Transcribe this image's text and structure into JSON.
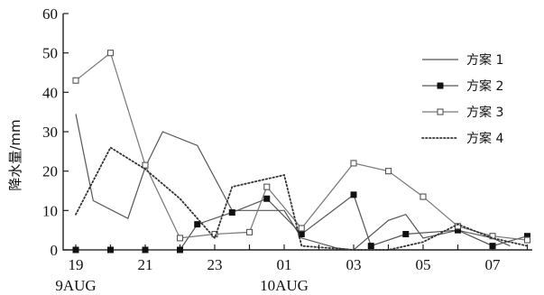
{
  "chart_data": {
    "type": "line",
    "title": "",
    "xlabel": "",
    "ylabel": "降水量/mm",
    "ylim": [
      0,
      60
    ],
    "yticks": [
      0,
      10,
      20,
      30,
      40,
      50,
      60
    ],
    "x_index_range": [
      0,
      14
    ],
    "xticks": [
      {
        "index": 0,
        "label": "19",
        "sublabel": "9AUG"
      },
      {
        "index": 2,
        "label": "21",
        "sublabel": ""
      },
      {
        "index": 4,
        "label": "23",
        "sublabel": ""
      },
      {
        "index": 6,
        "label": "01",
        "sublabel": "10AUG"
      },
      {
        "index": 8,
        "label": "03",
        "sublabel": ""
      },
      {
        "index": 10,
        "label": "05",
        "sublabel": ""
      },
      {
        "index": 12,
        "label": "07",
        "sublabel": ""
      }
    ],
    "legend": {
      "placement": "top-right"
    },
    "series": [
      {
        "name": "方案 1",
        "style": "solid",
        "marker": "none",
        "color": "#555555",
        "points": [
          [
            0,
            34.5
          ],
          [
            0.5,
            12.5
          ],
          [
            1.5,
            8
          ],
          [
            2,
            21
          ],
          [
            2.5,
            30
          ],
          [
            3.5,
            26.5
          ],
          [
            4.5,
            10
          ],
          [
            5,
            10
          ],
          [
            6,
            10
          ],
          [
            6.5,
            3
          ],
          [
            7.5,
            0.5
          ],
          [
            8,
            0
          ],
          [
            9,
            7.5
          ],
          [
            9.5,
            9
          ],
          [
            10,
            3
          ],
          [
            11,
            5
          ],
          [
            12,
            3
          ],
          [
            12.5,
            1
          ]
        ]
      },
      {
        "name": "方案 2",
        "style": "solid",
        "marker": "filled-square",
        "color": "#555555",
        "points": [
          [
            0,
            0
          ],
          [
            1,
            0
          ],
          [
            2,
            0
          ],
          [
            3,
            0
          ],
          [
            3.5,
            6.5
          ],
          [
            4.5,
            9.5
          ],
          [
            5.5,
            13
          ],
          [
            6.5,
            4
          ],
          [
            8,
            14
          ],
          [
            8.5,
            1
          ],
          [
            9.5,
            4
          ],
          [
            11,
            5
          ],
          [
            12,
            1
          ],
          [
            13,
            3.5
          ]
        ]
      },
      {
        "name": "方案 3",
        "style": "solid",
        "marker": "open-square",
        "color": "#777777",
        "points": [
          [
            0,
            43
          ],
          [
            1,
            50
          ],
          [
            2,
            21.5
          ],
          [
            3,
            3
          ],
          [
            4,
            4
          ],
          [
            5,
            4.5
          ],
          [
            5.5,
            16
          ],
          [
            6.5,
            5.5
          ],
          [
            8,
            22
          ],
          [
            9,
            20
          ],
          [
            10,
            13.5
          ],
          [
            11,
            6
          ],
          [
            12,
            3.5
          ],
          [
            13,
            2.5
          ]
        ]
      },
      {
        "name": "方案 4",
        "style": "dotted",
        "marker": "none",
        "color": "#333333",
        "points": [
          [
            0,
            9
          ],
          [
            1,
            26
          ],
          [
            2,
            20.5
          ],
          [
            3,
            13
          ],
          [
            4,
            3
          ],
          [
            4.5,
            16
          ],
          [
            6,
            19
          ],
          [
            6.5,
            1
          ],
          [
            8,
            0
          ],
          [
            9,
            0
          ],
          [
            10,
            2
          ],
          [
            11,
            6.5
          ],
          [
            12,
            3
          ],
          [
            13,
            1
          ]
        ]
      }
    ]
  }
}
